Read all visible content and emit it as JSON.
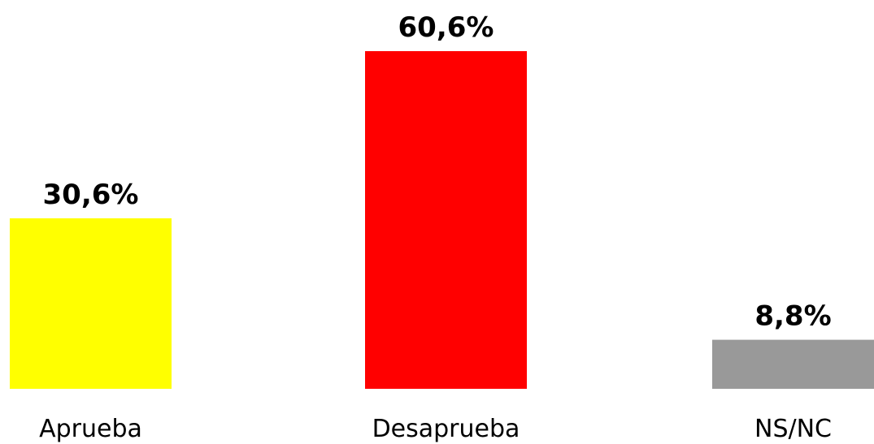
{
  "chart_data": {
    "type": "bar",
    "categories": [
      "Aprueba",
      "Desaprueba",
      "NS/NC"
    ],
    "values": [
      30.6,
      60.6,
      8.8
    ],
    "value_labels": [
      "30,6%",
      "60,6%",
      "8,8%"
    ],
    "colors": [
      "#ffff00",
      "#ff0000",
      "#999999"
    ],
    "ylim": [
      0,
      60.6
    ],
    "grid": false,
    "legend": "none"
  }
}
